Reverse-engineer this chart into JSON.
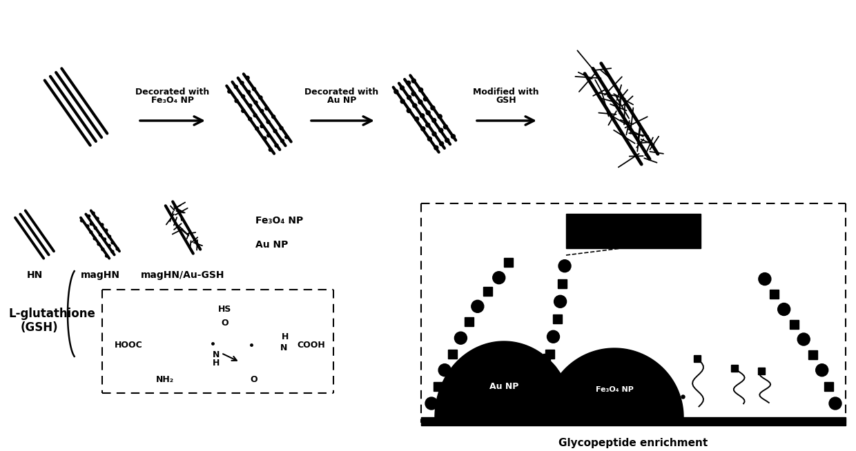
{
  "bg_color": "#ffffff",
  "arrow1_label_line1": "Decorated with",
  "arrow1_label_line2": "Fe₃O₄ NP",
  "arrow2_label_line1": "Decorated with",
  "arrow2_label_line2": "Au NP",
  "arrow3_label_line1": "Modified with",
  "arrow3_label_line2": "GSH",
  "label_HN": "HN",
  "label_magHN": "magHN",
  "label_magHN_Au_GSH": "magHN/Au-GSH",
  "label_Fe3O4": "Fe₃O₄ NP",
  "label_AuNP": "Au NP",
  "label_Lglutathione": "L-glutathione",
  "label_GSH_bracket": "(GSH)",
  "label_glycopeptide": "Glycopeptide enrichment",
  "gsh_HS": "HS",
  "gsh_O1": "O",
  "gsh_HOOC": "HOOC",
  "gsh_H": "H",
  "gsh_N1": "N",
  "gsh_N2": "N",
  "gsh_H2": "H",
  "gsh_NH2": "NH₂",
  "gsh_O2": "O",
  "gsh_COOH": "COOH",
  "label_AuNP_panel": "Au NP",
  "label_Fe3O4_panel": "Fe₃O₄ NP"
}
